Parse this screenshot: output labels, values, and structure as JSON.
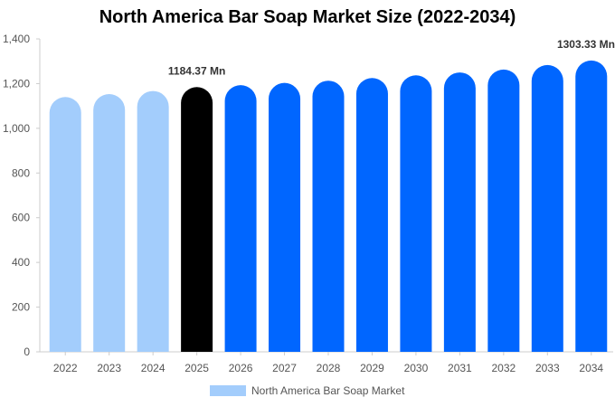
{
  "chart_data": {
    "type": "bar",
    "title": "North America Bar Soap Market Size (2022-2034)",
    "categories": [
      "2022",
      "2023",
      "2024",
      "2025",
      "2026",
      "2027",
      "2028",
      "2029",
      "2030",
      "2031",
      "2032",
      "2033",
      "2034"
    ],
    "series": [
      {
        "name": "North America Bar Soap Market",
        "values": [
          1140,
          1153,
          1167,
          1184.37,
          1193,
          1203,
          1213,
          1225,
          1237,
          1250,
          1263,
          1283,
          1303.33
        ]
      }
    ],
    "data_labels": [
      {
        "category": "2025",
        "text": "1184.37 Mn"
      },
      {
        "category": "2034",
        "text": "1303.33 Mn"
      }
    ],
    "ylim": [
      0,
      1400
    ],
    "y_ticks": [
      0,
      200,
      400,
      600,
      800,
      1000,
      1200,
      1400
    ],
    "y_tick_labels": [
      "0",
      "200",
      "400",
      "600",
      "800",
      "1,000",
      "1,200",
      "1,400"
    ],
    "grid": false,
    "legend_position": "bottom",
    "colors": {
      "historical": "#a3cdfc",
      "current": "#000000",
      "forecast": "#0066ff"
    }
  }
}
